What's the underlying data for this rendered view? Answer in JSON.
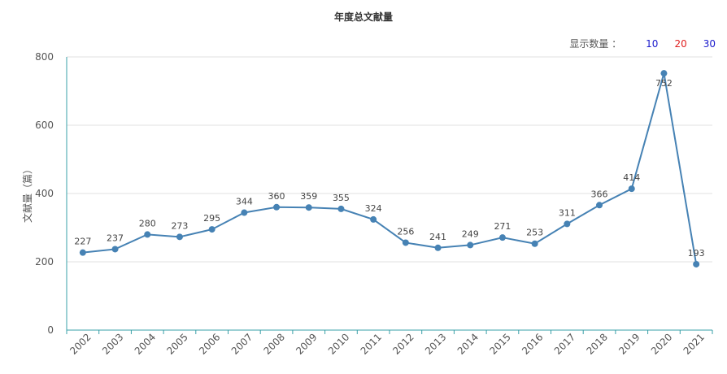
{
  "chart_data": {
    "type": "line",
    "title": "年度总文献量",
    "ylabel": "文献量（篇）",
    "xlabel": "",
    "ylim": [
      0,
      800
    ],
    "yticks": [
      0,
      200,
      400,
      600,
      800
    ],
    "grid": true,
    "x": [
      "2002",
      "2003",
      "2004",
      "2005",
      "2006",
      "2007",
      "2008",
      "2009",
      "2010",
      "2011",
      "2012",
      "2013",
      "2014",
      "2015",
      "2016",
      "2017",
      "2018",
      "2019",
      "2020",
      "2021"
    ],
    "series": [
      {
        "values": [
          227,
          237,
          280,
          273,
          295,
          344,
          360,
          359,
          355,
          324,
          256,
          241,
          249,
          271,
          253,
          311,
          366,
          414,
          752,
          193
        ]
      }
    ],
    "colors": {
      "line": "#4682b4",
      "axis": "#3aa0a8",
      "grid": "#e0e0e0"
    }
  },
  "controls": {
    "label": "显示数量 ：",
    "options": [
      {
        "text": "10",
        "color": "#1a1acc"
      },
      {
        "text": "20",
        "color": "#e02020"
      },
      {
        "text": "30",
        "color": "#1a1acc"
      }
    ]
  }
}
